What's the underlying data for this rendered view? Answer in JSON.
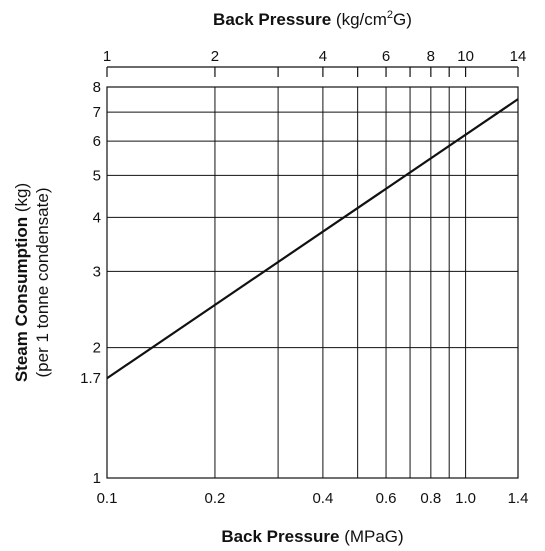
{
  "chart_data": {
    "type": "line",
    "top_axis": {
      "title_bold": "Back Pressure",
      "title_unit_pre": "(kg/cm",
      "title_unit_sup": "2",
      "title_unit_post": "G)",
      "scale": "log",
      "range": [
        1,
        14
      ],
      "ticks": [
        1,
        2,
        3,
        4,
        5,
        6,
        7,
        8,
        9,
        10,
        14
      ],
      "tick_labels": [
        {
          "value": 1,
          "label": "1"
        },
        {
          "value": 2,
          "label": "2"
        },
        {
          "value": 4,
          "label": "4"
        },
        {
          "value": 6,
          "label": "6"
        },
        {
          "value": 8,
          "label": "8"
        },
        {
          "value": 10,
          "label": "10"
        },
        {
          "value": 14,
          "label": "14"
        }
      ]
    },
    "x_axis": {
      "title_bold": "Back Pressure",
      "title_unit": "(MPaG)",
      "scale": "log",
      "range": [
        0.1,
        1.4
      ],
      "gridlines": [
        0.2,
        0.3,
        0.4,
        0.5,
        0.6,
        0.7,
        0.8,
        0.9,
        1.0
      ],
      "tick_labels": [
        {
          "value": 0.1,
          "label": "0.1"
        },
        {
          "value": 0.2,
          "label": "0.2"
        },
        {
          "value": 0.4,
          "label": "0.4"
        },
        {
          "value": 0.6,
          "label": "0.6"
        },
        {
          "value": 0.8,
          "label": "0.8"
        },
        {
          "value": 1.0,
          "label": "1.0"
        },
        {
          "value": 1.4,
          "label": "1.4"
        }
      ]
    },
    "y_axis": {
      "title_bold": "Steam Consumption",
      "title_unit": "(kg)",
      "title_line2": "(per 1 tonne condensate)",
      "scale": "log",
      "range": [
        1,
        8
      ],
      "gridlines": [
        2,
        3,
        4,
        5,
        6,
        7
      ],
      "tick_labels": [
        {
          "value": 1,
          "label": "1"
        },
        {
          "value": 1.7,
          "label": "1.7"
        },
        {
          "value": 2,
          "label": "2"
        },
        {
          "value": 3,
          "label": "3"
        },
        {
          "value": 4,
          "label": "4"
        },
        {
          "value": 5,
          "label": "5"
        },
        {
          "value": 6,
          "label": "6"
        },
        {
          "value": 7,
          "label": "7"
        },
        {
          "value": 8,
          "label": "8"
        }
      ]
    },
    "series": [
      {
        "color": "#111111",
        "points": [
          {
            "x": 0.1,
            "y": 1.7
          },
          {
            "x": 1.4,
            "y": 7.5
          }
        ]
      }
    ],
    "grid": true,
    "legend": "none"
  }
}
